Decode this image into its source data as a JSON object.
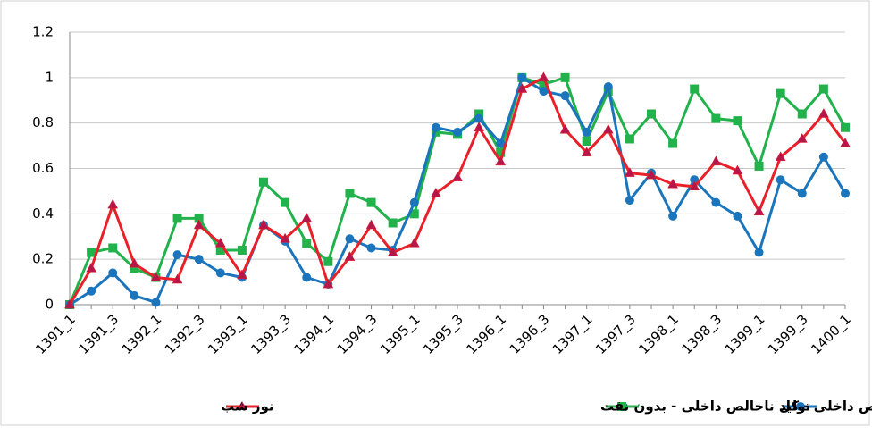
{
  "chart_data": {
    "type": "line",
    "categories": [
      "1391_1",
      null,
      "1391_3",
      null,
      "1392_1",
      null,
      "1392_3",
      null,
      "1393_1",
      null,
      "1393_3",
      null,
      "1394_1",
      null,
      "1394_3",
      null,
      "1395_1",
      null,
      "1395_3",
      null,
      "1396_1",
      null,
      "1396_3",
      null,
      "1397_1",
      null,
      "1397_3",
      null,
      "1398_1",
      null,
      "1398_3",
      null,
      "1399_1",
      null,
      "1399_3",
      null,
      "1400_1"
    ],
    "series": [
      {
        "name": "تولید ناخالص داخلی - بدون نفت",
        "color": "#22b24c",
        "marker": "square",
        "values": [
          0,
          0.23,
          0.25,
          0.16,
          0.12,
          0.38,
          0.38,
          0.24,
          0.24,
          0.54,
          0.45,
          0.27,
          0.19,
          0.49,
          0.45,
          0.36,
          0.4,
          0.76,
          0.75,
          0.84,
          0.67,
          1.0,
          0.97,
          1.0,
          0.72,
          0.94,
          0.73,
          0.84,
          0.71,
          0.95,
          0.82,
          0.81,
          0.61,
          0.93,
          0.84,
          0.95,
          0.78
        ]
      },
      {
        "name": "تولید ناخالص داخلی - کل",
        "color": "#1a75bc",
        "marker": "circle",
        "values": [
          0,
          0.06,
          0.14,
          0.04,
          0.01,
          0.22,
          0.2,
          0.14,
          0.12,
          0.35,
          0.28,
          0.12,
          0.09,
          0.29,
          0.25,
          0.24,
          0.45,
          0.78,
          0.76,
          0.82,
          0.71,
          1.0,
          0.94,
          0.92,
          0.76,
          0.96,
          0.46,
          0.58,
          0.39,
          0.55,
          0.45,
          0.39,
          0.23,
          0.55,
          0.49,
          0.65,
          0.49
        ]
      },
      {
        "name": "نور شب",
        "color": "#e8202a",
        "marker": "triangle",
        "values": [
          0,
          0.16,
          0.44,
          0.18,
          0.12,
          0.11,
          0.35,
          0.27,
          0.13,
          0.35,
          0.29,
          0.38,
          0.09,
          0.21,
          0.35,
          0.23,
          0.27,
          0.49,
          0.56,
          0.78,
          0.63,
          0.95,
          1.0,
          0.77,
          0.67,
          0.77,
          0.58,
          0.57,
          0.53,
          0.52,
          0.63,
          0.59,
          0.41,
          0.65,
          0.73,
          0.84,
          0.71
        ]
      }
    ],
    "ylim": [
      0,
      1.2
    ],
    "yticks": [
      0,
      0.2,
      0.4,
      0.6,
      0.8,
      1,
      1.2
    ],
    "grid": true,
    "legend": "bottom"
  }
}
